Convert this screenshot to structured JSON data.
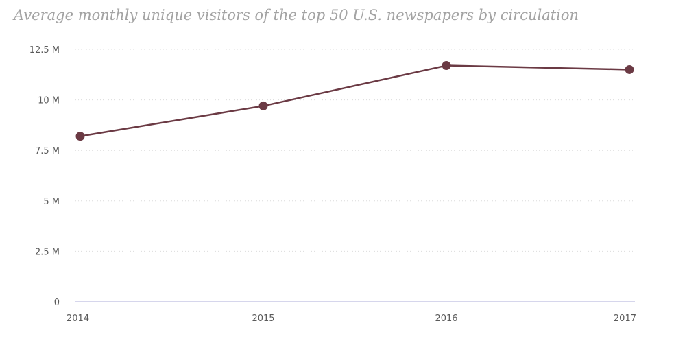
{
  "chart_data": {
    "type": "line",
    "title": "Average monthly unique visitors of the top 50 U.S. newspapers by circulation",
    "categories": [
      "2014",
      "2015",
      "2016",
      "2017"
    ],
    "series": [
      {
        "values": [
          8200000,
          9700000,
          11700000,
          11500000
        ],
        "color": "#6b3a44"
      }
    ],
    "y_ticks": [
      0,
      2500000,
      5000000,
      7500000,
      10000000,
      12500000
    ],
    "y_tick_labels": [
      "0",
      "2.5 M",
      "5 M",
      "7.5 M",
      "10 M",
      "12.5 M"
    ],
    "ylim": [
      0,
      12500000
    ],
    "xlabel": "",
    "ylabel": "",
    "grid": true,
    "gridline_color": "#dcdcdc",
    "axis_line_color": "#c9c9e6"
  }
}
